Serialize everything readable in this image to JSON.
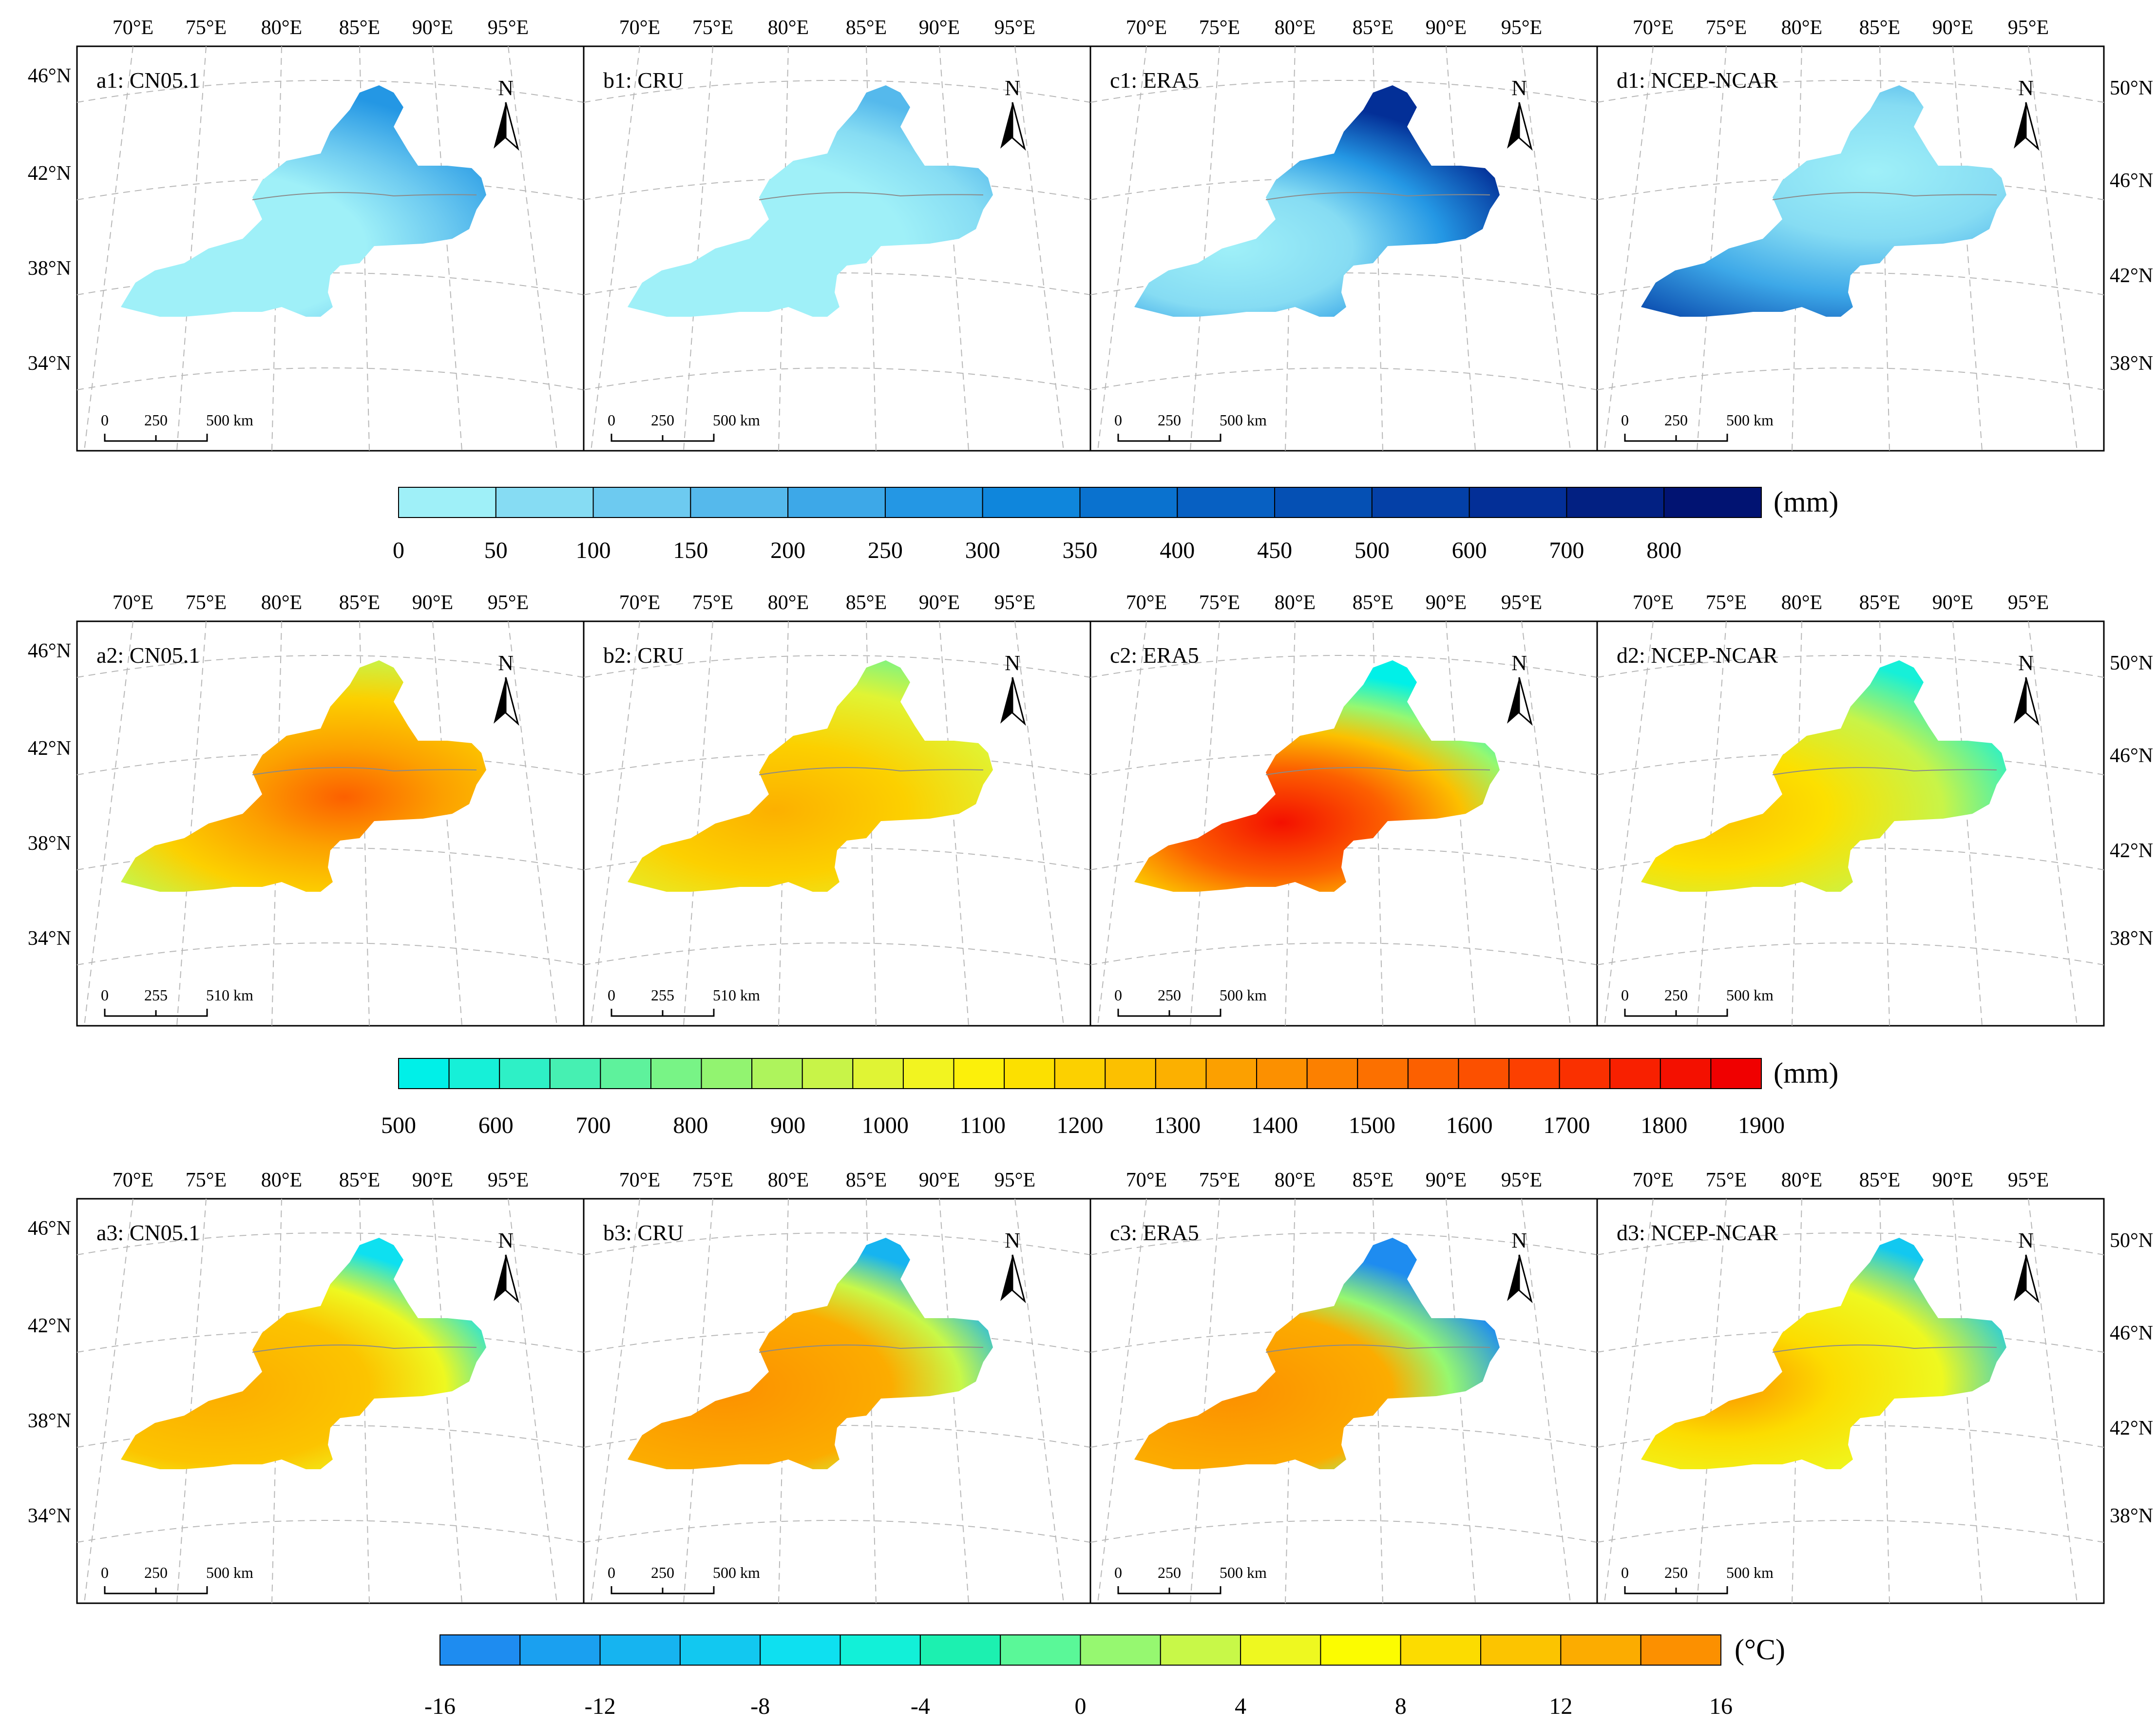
{
  "rows": [
    {
      "row_id": "precip-seasonal",
      "panels": [
        {
          "label": "a1: CN05.1",
          "scale": {
            "zero": "0",
            "mid": "250",
            "end": "500 km"
          }
        },
        {
          "label": "b1: CRU",
          "scale": {
            "zero": "0",
            "mid": "250",
            "end": "500 km"
          }
        },
        {
          "label": "c1: ERA5",
          "scale": {
            "zero": "0",
            "mid": "250",
            "end": "500 km"
          }
        },
        {
          "label": "d1: NCEP-NCAR",
          "scale": {
            "zero": "0",
            "mid": "250",
            "end": "500 km"
          }
        }
      ],
      "legend": {
        "unit": "(mm)",
        "ticks": [
          "0",
          "50",
          "100",
          "150",
          "200",
          "250",
          "300",
          "350",
          "400",
          "450",
          "500",
          "600",
          "700",
          "800"
        ],
        "colors": [
          "#9ff0f8",
          "#86dcf3",
          "#6dcaf0",
          "#55b9ec",
          "#3da8e8",
          "#2497e4",
          "#0f86dc",
          "#0a72cf",
          "#0760c2",
          "#0550b4",
          "#0440a7",
          "#032f97",
          "#022082",
          "#011372"
        ]
      }
    },
    {
      "row_id": "et",
      "panels": [
        {
          "label": "a2: CN05.1",
          "scale": {
            "zero": "0",
            "mid": "255",
            "end": "510 km"
          }
        },
        {
          "label": "b2: CRU",
          "scale": {
            "zero": "0",
            "mid": "255",
            "end": "510 km"
          }
        },
        {
          "label": "c2: ERA5",
          "scale": {
            "zero": "0",
            "mid": "250",
            "end": "500 km"
          }
        },
        {
          "label": "d2: NCEP-NCAR",
          "scale": {
            "zero": "0",
            "mid": "250",
            "end": "500 km"
          }
        }
      ],
      "legend": {
        "unit": "(mm)",
        "ticks": [
          "500",
          "600",
          "700",
          "800",
          "900",
          "1000",
          "1100",
          "1200",
          "1300",
          "1400",
          "1500",
          "1600",
          "1700",
          "1800",
          "1900"
        ],
        "colors": [
          "#00f0e8",
          "#16f0d8",
          "#2ef0c6",
          "#46f0b2",
          "#5ef29c",
          "#78f486",
          "#92f470",
          "#aef45c",
          "#c8f448",
          "#e0f434",
          "#f2f420",
          "#fcf00a",
          "#fce000",
          "#fcd000",
          "#fcc000",
          "#fcb000",
          "#fca000",
          "#fc9000",
          "#fc8000",
          "#fc7000",
          "#fc6000",
          "#fc5000",
          "#fc4000",
          "#fa3000",
          "#f82000",
          "#f41000",
          "#f00000"
        ]
      }
    },
    {
      "row_id": "temperature",
      "panels": [
        {
          "label": "a3: CN05.1",
          "scale": {
            "zero": "0",
            "mid": "250",
            "end": "500 km"
          }
        },
        {
          "label": "b3: CRU",
          "scale": {
            "zero": "0",
            "mid": "250",
            "end": "500 km"
          }
        },
        {
          "label": "c3: ERA5",
          "scale": {
            "zero": "0",
            "mid": "250",
            "end": "500 km"
          }
        },
        {
          "label": "d3: NCEP-NCAR",
          "scale": {
            "zero": "0",
            "mid": "250",
            "end": "500 km"
          }
        }
      ],
      "legend": {
        "unit": "(°C)",
        "ticks": [
          "-16",
          "-12",
          "-8",
          "-4",
          "0",
          "4",
          "8",
          "12",
          "16"
        ],
        "colors": [
          "#1e8cf0",
          "#1aa0f0",
          "#16b4f0",
          "#12c8f0",
          "#0ee0f0",
          "#12f0d8",
          "#1cf0b0",
          "#5af898",
          "#96f870",
          "#c8f848",
          "#eef820",
          "#fcfc00",
          "#fcdc00",
          "#fcc400",
          "#fcac00",
          "#fc9000"
        ]
      }
    }
  ],
  "lon_labels": [
    "70°E",
    "75°E",
    "80°E",
    "85°E",
    "90°E",
    "95°E"
  ],
  "lat_labels_left": [
    "46°N",
    "42°N",
    "38°N",
    "34°N"
  ],
  "lat_labels_right": [
    "50°N",
    "46°N",
    "42°N",
    "38°N"
  ],
  "north_label": "N"
}
